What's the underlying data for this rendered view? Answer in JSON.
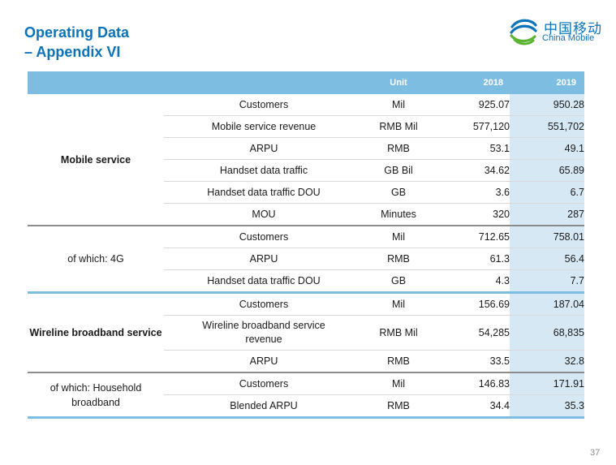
{
  "title": {
    "line1": "Operating Data",
    "line2": "– Appendix VI"
  },
  "logo": {
    "cn": "中国移动",
    "en": "China Mobile"
  },
  "table": {
    "headers": {
      "unit": "Unit",
      "y2018": "2018",
      "y2019": "2019"
    },
    "groups": [
      {
        "label": "Mobile service",
        "rows": [
          {
            "metric": "Customers",
            "unit": "Mil",
            "v2018": "925.07",
            "v2019": "950.28"
          },
          {
            "metric": "Mobile service revenue",
            "unit": "RMB Mil",
            "v2018": "577,120",
            "v2019": "551,702"
          },
          {
            "metric": "ARPU",
            "unit": "RMB",
            "v2018": "53.1",
            "v2019": "49.1"
          },
          {
            "metric": "Handset data traffic",
            "unit": "GB Bil",
            "v2018": "34.62",
            "v2019": "65.89"
          },
          {
            "metric": "Handset data traffic DOU",
            "unit": "GB",
            "v2018": "3.6",
            "v2019": "6.7"
          },
          {
            "metric": "MOU",
            "unit": "Minutes",
            "v2018": "320",
            "v2019": "287"
          }
        ]
      },
      {
        "label": "of which: 4G",
        "rows": [
          {
            "metric": "Customers",
            "unit": "Mil",
            "v2018": "712.65",
            "v2019": "758.01"
          },
          {
            "metric": "ARPU",
            "unit": "RMB",
            "v2018": "61.3",
            "v2019": "56.4"
          },
          {
            "metric": "Handset data traffic DOU",
            "unit": "GB",
            "v2018": "4.3",
            "v2019": "7.7"
          }
        ]
      },
      {
        "label": "Wireline broadband service",
        "rows": [
          {
            "metric": "Customers",
            "unit": "Mil",
            "v2018": "156.69",
            "v2019": "187.04"
          },
          {
            "metric": "Wireline broadband service revenue",
            "unit": "RMB Mil",
            "v2018": "54,285",
            "v2019": "68,835"
          },
          {
            "metric": "ARPU",
            "unit": "RMB",
            "v2018": "33.5",
            "v2019": "32.8"
          }
        ]
      },
      {
        "label": "of which: Household broadband",
        "rows": [
          {
            "metric": "Customers",
            "unit": "Mil",
            "v2018": "146.83",
            "v2019": "171.91"
          },
          {
            "metric": "Blended ARPU",
            "unit": "RMB",
            "v2018": "34.4",
            "v2019": "35.3"
          }
        ]
      }
    ]
  },
  "page_number": "37"
}
